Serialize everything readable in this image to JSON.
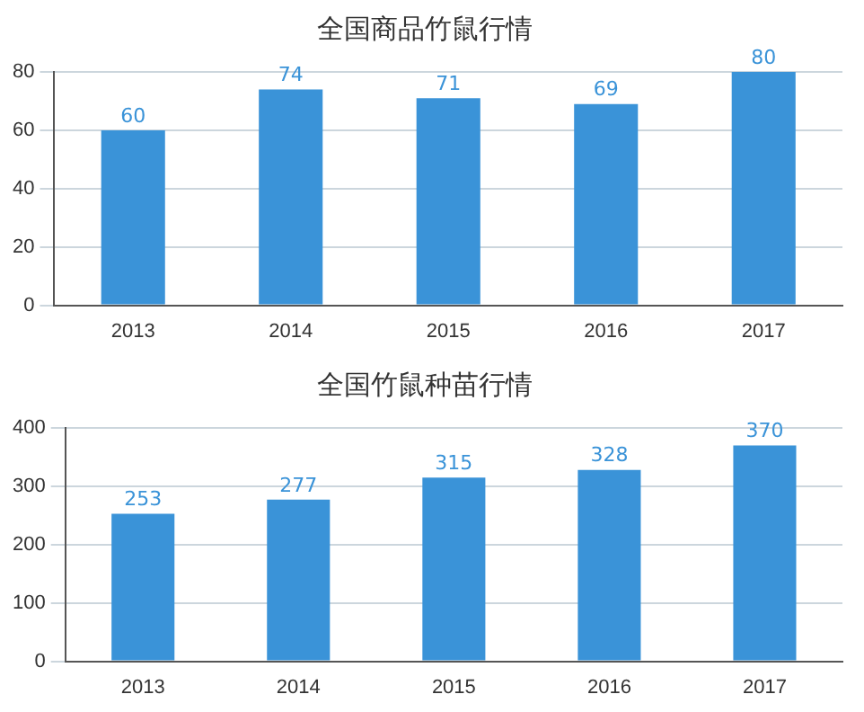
{
  "chart_data": [
    {
      "type": "bar",
      "title": "全国商品竹鼠行情",
      "categories": [
        "2013",
        "2014",
        "2015",
        "2016",
        "2017"
      ],
      "values": [
        60,
        74,
        71,
        69,
        80
      ],
      "color": "#3a93d8",
      "ylim": [
        0,
        80
      ],
      "yticks": [
        0,
        20,
        40,
        60,
        80
      ],
      "grid": "y",
      "data_labels": true
    },
    {
      "type": "bar",
      "title": "全国竹鼠种苗行情",
      "categories": [
        "2013",
        "2014",
        "2015",
        "2016",
        "2017"
      ],
      "values": [
        253,
        277,
        315,
        328,
        370
      ],
      "color": "#3a93d8",
      "ylim": [
        0,
        400
      ],
      "yticks": [
        0,
        100,
        200,
        300,
        400
      ],
      "grid": "y",
      "data_labels": true
    }
  ]
}
